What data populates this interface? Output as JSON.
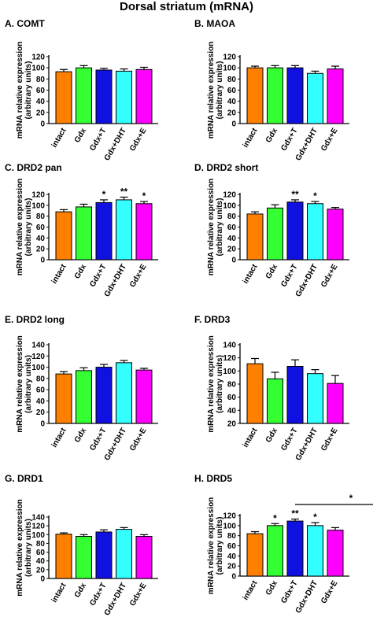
{
  "title": "Dorsal striatum (mRNA)",
  "colors": {
    "intact": "#ff8000",
    "Gdx": "#33ff33",
    "Gdx+T": "#1010e0",
    "Gdx+DHT": "#33ffff",
    "Gdx+E": "#ff00ff",
    "axis": "#000000"
  },
  "chart_data": [
    {
      "panel": "A. COMT",
      "type": "bar",
      "ylabel": "mRNA relative expression\n(arbitrary units)",
      "categories": [
        "intact",
        "Gdx",
        "Gdx+T",
        "Gdx+DHT",
        "Gdx+E"
      ],
      "values": [
        93,
        100,
        96,
        94,
        97
      ],
      "errors": [
        4,
        4,
        3,
        4,
        4
      ],
      "significance": [
        "",
        "",
        "",
        "",
        ""
      ],
      "ylim": [
        0,
        120
      ],
      "yticks": [
        0,
        20,
        40,
        60,
        80,
        100,
        120
      ]
    },
    {
      "panel": "B. MAOA",
      "type": "bar",
      "ylabel": "mRNA relative expression\n(arbitrary units)",
      "categories": [
        "intact",
        "Gdx",
        "Gdx+T",
        "Gdx+DHT",
        "Gdx+E"
      ],
      "values": [
        100,
        100,
        100,
        90,
        98
      ],
      "errors": [
        3,
        4,
        4,
        4,
        5
      ],
      "significance": [
        "",
        "",
        "",
        "",
        ""
      ],
      "ylim": [
        0,
        120
      ],
      "yticks": [
        0,
        20,
        40,
        60,
        80,
        100,
        120
      ]
    },
    {
      "panel": "C. DRD2 pan",
      "type": "bar",
      "ylabel": "mRNA relative expression\n(arbitrary units)",
      "categories": [
        "intact",
        "Gdx",
        "Gdx+T",
        "Gdx+DHT",
        "Gdx+E"
      ],
      "values": [
        88,
        97,
        105,
        110,
        103
      ],
      "errors": [
        4,
        5,
        5,
        5,
        4
      ],
      "significance": [
        "",
        "",
        "*",
        "**",
        "*"
      ],
      "ylim": [
        0,
        120
      ],
      "yticks": [
        0,
        20,
        40,
        60,
        80,
        100,
        120
      ]
    },
    {
      "panel": "D. DRD2 short",
      "type": "bar",
      "ylabel": "mRNA relative expression\n(arbitrary units)",
      "categories": [
        "intact",
        "Gdx",
        "Gdx+T",
        "Gdx+DHT",
        "Gdx+E"
      ],
      "values": [
        84,
        95,
        106,
        103,
        93
      ],
      "errors": [
        4,
        6,
        4,
        4,
        3
      ],
      "significance": [
        "",
        "",
        "**",
        "*",
        ""
      ],
      "ylim": [
        0,
        120
      ],
      "yticks": [
        0,
        20,
        40,
        60,
        80,
        100,
        120
      ]
    },
    {
      "panel": "E. DRD2 long",
      "type": "bar",
      "ylabel": "mRNA relative expression\n(arbitrary units)",
      "categories": [
        "intact",
        "Gdx",
        "Gdx+T",
        "Gdx+DHT",
        "Gdx+E"
      ],
      "values": [
        88,
        94,
        100,
        108,
        95
      ],
      "errors": [
        4,
        5,
        5,
        4,
        3
      ],
      "significance": [
        "",
        "",
        "",
        "",
        ""
      ],
      "ylim": [
        0,
        140
      ],
      "yticks": [
        0,
        20,
        40,
        60,
        80,
        100,
        120,
        140
      ]
    },
    {
      "panel": "F. DRD3",
      "type": "bar",
      "ylabel": "mRNA relative expression\n(arbitrary units)",
      "categories": [
        "intact",
        "Gdx",
        "Gdx+T",
        "Gdx+DHT",
        "Gdx+E"
      ],
      "values": [
        111,
        88,
        107,
        96,
        81
      ],
      "errors": [
        8,
        10,
        10,
        6,
        12
      ],
      "significance": [
        "",
        "",
        "",
        "",
        ""
      ],
      "ylim": [
        20,
        140
      ],
      "yticks": [
        20,
        40,
        60,
        80,
        100,
        120,
        140
      ]
    },
    {
      "panel": "G. DRD1",
      "type": "bar",
      "ylabel": "mRNA relative expression\n(arbitrary units)",
      "categories": [
        "intact",
        "Gdx",
        "Gdx+T",
        "Gdx+DHT",
        "Gdx+E"
      ],
      "values": [
        101,
        96,
        106,
        112,
        96
      ],
      "errors": [
        3,
        4,
        5,
        4,
        4
      ],
      "significance": [
        "",
        "",
        "",
        "",
        ""
      ],
      "ylim": [
        0,
        140
      ],
      "yticks": [
        0,
        20,
        40,
        60,
        80,
        100,
        120,
        140
      ]
    },
    {
      "panel": "H. DRD5",
      "type": "bar",
      "ylabel": "mRNA relative expression\n(arbitrary units)",
      "categories": [
        "intact",
        "Gdx",
        "Gdx+T",
        "Gdx+DHT",
        "Gdx+E"
      ],
      "values": [
        84,
        100,
        109,
        100,
        91
      ],
      "errors": [
        4,
        4,
        4,
        6,
        5
      ],
      "significance": [
        "",
        "*",
        "**",
        "*",
        ""
      ],
      "bracket": {
        "from": "Gdx+T",
        "to": "Gdx+E",
        "label": "*"
      },
      "ylim": [
        0,
        120
      ],
      "yticks": [
        0,
        20,
        40,
        60,
        80,
        100,
        120
      ]
    }
  ]
}
